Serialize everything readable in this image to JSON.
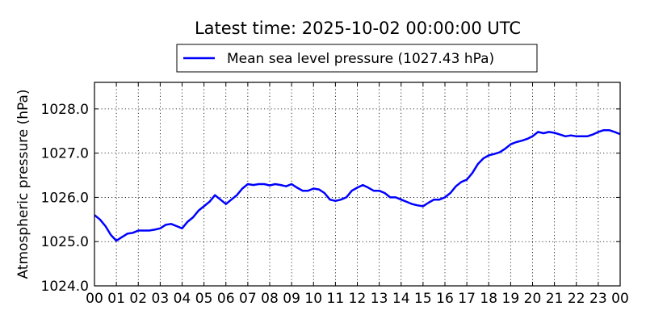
{
  "chart_data": {
    "type": "line",
    "title": "Latest time: 2025-10-02 00:00:00 UTC",
    "xlabel": "",
    "ylabel": "Atmospheric pressure (hPa)",
    "x_tick_labels": [
      "00",
      "01",
      "02",
      "03",
      "04",
      "05",
      "06",
      "07",
      "08",
      "09",
      "10",
      "11",
      "12",
      "13",
      "14",
      "15",
      "16",
      "17",
      "18",
      "19",
      "20",
      "21",
      "22",
      "23",
      "00"
    ],
    "y_tick_labels": [
      "1024.0",
      "1025.0",
      "1026.0",
      "1027.0",
      "1028.0"
    ],
    "xlim": [
      0,
      24
    ],
    "ylim": [
      1024.0,
      1028.6
    ],
    "grid": true,
    "legend_position": "top-center",
    "colors": {
      "series": "#0000ff"
    },
    "series": [
      {
        "name": "Mean sea level pressure (1027.43 hPa)",
        "x": [
          0,
          0.25,
          0.5,
          0.75,
          1,
          1.25,
          1.5,
          1.75,
          2,
          2.25,
          2.5,
          2.75,
          3,
          3.25,
          3.5,
          3.75,
          4,
          4.25,
          4.5,
          4.75,
          5,
          5.25,
          5.5,
          5.75,
          6,
          6.25,
          6.5,
          6.75,
          7,
          7.25,
          7.5,
          7.75,
          8,
          8.25,
          8.5,
          8.75,
          9,
          9.25,
          9.5,
          9.75,
          10,
          10.25,
          10.5,
          10.75,
          11,
          11.25,
          11.5,
          11.75,
          12,
          12.25,
          12.5,
          12.75,
          13,
          13.25,
          13.5,
          13.75,
          14,
          14.25,
          14.5,
          14.75,
          15,
          15.25,
          15.5,
          15.75,
          16,
          16.25,
          16.5,
          16.75,
          17,
          17.25,
          17.5,
          17.75,
          18,
          18.25,
          18.5,
          18.75,
          19,
          19.25,
          19.5,
          19.75,
          20,
          20.25,
          20.5,
          20.75,
          21,
          21.25,
          21.5,
          21.75,
          22,
          22.25,
          22.5,
          22.75,
          23,
          23.25,
          23.5,
          23.75,
          24
        ],
        "y": [
          1025.6,
          1025.5,
          1025.35,
          1025.15,
          1025.02,
          1025.1,
          1025.18,
          1025.2,
          1025.25,
          1025.25,
          1025.25,
          1025.27,
          1025.3,
          1025.38,
          1025.4,
          1025.35,
          1025.3,
          1025.45,
          1025.55,
          1025.7,
          1025.8,
          1025.9,
          1026.05,
          1025.95,
          1025.85,
          1025.95,
          1026.05,
          1026.2,
          1026.3,
          1026.28,
          1026.3,
          1026.3,
          1026.27,
          1026.3,
          1026.28,
          1026.25,
          1026.3,
          1026.22,
          1026.15,
          1026.15,
          1026.2,
          1026.18,
          1026.1,
          1025.95,
          1025.92,
          1025.95,
          1026.0,
          1026.15,
          1026.22,
          1026.28,
          1026.22,
          1026.15,
          1026.15,
          1026.1,
          1026.0,
          1026.0,
          1025.95,
          1025.9,
          1025.85,
          1025.82,
          1025.8,
          1025.88,
          1025.95,
          1025.95,
          1026.0,
          1026.1,
          1026.25,
          1026.35,
          1026.4,
          1026.55,
          1026.75,
          1026.88,
          1026.95,
          1026.98,
          1027.02,
          1027.1,
          1027.2,
          1027.25,
          1027.28,
          1027.32,
          1027.38,
          1027.48,
          1027.45,
          1027.48,
          1027.46,
          1027.42,
          1027.38,
          1027.4,
          1027.38,
          1027.38,
          1027.38,
          1027.42,
          1027.48,
          1027.52,
          1027.52,
          1027.48,
          1027.43
        ]
      }
    ]
  }
}
